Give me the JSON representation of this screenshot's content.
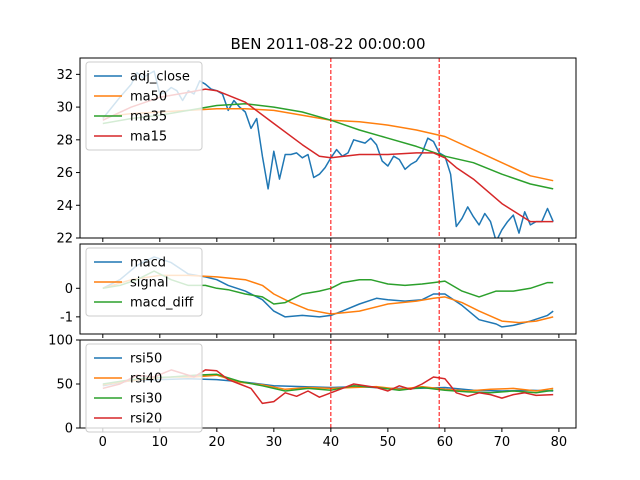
{
  "chart_data": [
    {
      "type": "line",
      "title": "BEN 2011-08-22 00:00:00",
      "ylim": [
        22,
        33
      ],
      "yticks": [
        22,
        24,
        26,
        28,
        30,
        32
      ],
      "xlim": [
        -4,
        83
      ],
      "vlines": [
        40,
        59
      ],
      "legend": "upper-left",
      "series": [
        {
          "name": "adj_close",
          "color": "#1f77b4",
          "x": [
            0,
            3,
            5,
            6,
            7,
            8,
            9,
            10,
            11,
            12,
            13,
            14,
            15,
            16,
            17,
            18,
            19,
            20,
            21,
            22,
            23,
            24,
            25,
            26,
            27,
            28,
            29,
            30,
            31,
            32,
            33,
            34,
            35,
            36,
            37,
            38,
            39,
            40,
            41,
            42,
            43,
            44,
            45,
            46,
            47,
            48,
            49,
            50,
            51,
            52,
            53,
            54,
            55,
            56,
            57,
            58,
            59,
            60,
            61,
            62,
            63,
            64,
            65,
            66,
            67,
            68,
            69,
            70,
            71,
            72,
            73,
            74,
            75,
            76,
            77,
            78,
            79
          ],
          "values": [
            29.3,
            30.6,
            31.4,
            32.1,
            31.8,
            32.0,
            32.2,
            30.8,
            30.9,
            31.2,
            31.0,
            30.4,
            31.0,
            30.8,
            31.6,
            31.4,
            31.1,
            31.0,
            30.8,
            29.8,
            30.4,
            30.0,
            29.7,
            28.7,
            29.3,
            27.0,
            25.0,
            27.3,
            25.6,
            27.1,
            27.1,
            27.2,
            26.9,
            27.1,
            25.7,
            25.9,
            26.3,
            26.9,
            27.4,
            27.0,
            27.2,
            28.0,
            27.9,
            27.8,
            28.1,
            27.7,
            26.7,
            26.4,
            27.0,
            26.8,
            26.2,
            26.5,
            26.7,
            27.2,
            28.1,
            27.9,
            27.2,
            27.0,
            25.9,
            22.7,
            23.2,
            23.9,
            23.3,
            22.8,
            23.5,
            23.0,
            21.8,
            22.5,
            23.0,
            23.4,
            22.3,
            23.6,
            22.8,
            23.0,
            23.0,
            23.8,
            23.0
          ]
        },
        {
          "name": "ma50",
          "color": "#ff7f0e",
          "x": [
            0,
            5,
            10,
            15,
            20,
            25,
            30,
            35,
            40,
            45,
            50,
            55,
            60,
            65,
            70,
            75,
            79
          ],
          "values": [
            29.4,
            29.6,
            29.7,
            29.8,
            29.9,
            29.9,
            29.8,
            29.5,
            29.2,
            29.1,
            28.9,
            28.6,
            28.2,
            27.4,
            26.6,
            25.8,
            25.5
          ]
        },
        {
          "name": "ma35",
          "color": "#2ca02c",
          "x": [
            0,
            5,
            10,
            15,
            20,
            25,
            30,
            35,
            40,
            45,
            50,
            55,
            60,
            65,
            70,
            75,
            79
          ],
          "values": [
            29.0,
            29.3,
            29.5,
            29.8,
            30.1,
            30.2,
            30.0,
            29.7,
            29.2,
            28.6,
            28.1,
            27.6,
            27.0,
            26.6,
            25.9,
            25.3,
            25.0
          ]
        },
        {
          "name": "ma15",
          "color": "#d62728",
          "x": [
            0,
            5,
            10,
            15,
            18,
            20,
            25,
            30,
            35,
            38,
            40,
            45,
            50,
            55,
            58,
            60,
            62,
            65,
            70,
            75,
            79
          ],
          "values": [
            29.2,
            30.0,
            30.6,
            30.9,
            31.1,
            31.0,
            30.3,
            29.0,
            27.7,
            27.0,
            26.9,
            27.1,
            27.1,
            27.2,
            27.2,
            26.9,
            26.3,
            25.6,
            24.1,
            23.0,
            23.0
          ]
        }
      ]
    },
    {
      "type": "line",
      "ylim": [
        -1.6,
        1.55
      ],
      "yticks": [
        -1,
        0
      ],
      "xlim": [
        -4,
        83
      ],
      "vlines": [
        40,
        59
      ],
      "legend": "upper-left",
      "series": [
        {
          "name": "macd",
          "color": "#1f77b4",
          "x": [
            0,
            3,
            6,
            9,
            12,
            15,
            18,
            20,
            22,
            25,
            28,
            30,
            32,
            35,
            38,
            40,
            42,
            45,
            48,
            50,
            53,
            56,
            58,
            60,
            63,
            66,
            69,
            70,
            72,
            75,
            78,
            79
          ],
          "values": [
            0.0,
            0.3,
            0.8,
            1.1,
            0.9,
            0.5,
            0.4,
            0.3,
            0.1,
            -0.1,
            -0.4,
            -0.8,
            -1.0,
            -0.95,
            -1.0,
            -0.95,
            -0.8,
            -0.55,
            -0.35,
            -0.4,
            -0.45,
            -0.4,
            -0.2,
            -0.2,
            -0.6,
            -1.1,
            -1.25,
            -1.35,
            -1.3,
            -1.15,
            -0.95,
            -0.8
          ]
        },
        {
          "name": "signal",
          "color": "#ff7f0e",
          "x": [
            0,
            5,
            10,
            15,
            20,
            25,
            28,
            30,
            33,
            36,
            40,
            45,
            50,
            55,
            58,
            60,
            63,
            66,
            70,
            73,
            76,
            79
          ],
          "values": [
            0.0,
            0.3,
            0.45,
            0.45,
            0.4,
            0.3,
            0.1,
            -0.2,
            -0.5,
            -0.75,
            -0.9,
            -0.8,
            -0.55,
            -0.45,
            -0.35,
            -0.3,
            -0.5,
            -0.8,
            -1.15,
            -1.2,
            -1.15,
            -1.0
          ]
        },
        {
          "name": "macd_diff",
          "color": "#2ca02c",
          "x": [
            0,
            3,
            6,
            9,
            12,
            15,
            18,
            20,
            22,
            25,
            28,
            30,
            32,
            35,
            38,
            40,
            42,
            45,
            47,
            50,
            53,
            56,
            58,
            60,
            63,
            66,
            69,
            72,
            75,
            78,
            79
          ],
          "values": [
            0.0,
            0.1,
            0.3,
            0.6,
            0.3,
            0.1,
            0.1,
            0.0,
            -0.05,
            -0.2,
            -0.3,
            -0.55,
            -0.5,
            -0.2,
            -0.1,
            0.0,
            0.2,
            0.3,
            0.3,
            0.15,
            0.1,
            0.15,
            0.2,
            0.25,
            -0.1,
            -0.3,
            -0.1,
            -0.1,
            0.0,
            0.2,
            0.2
          ]
        }
      ]
    },
    {
      "type": "line",
      "ylim": [
        0,
        100
      ],
      "yticks": [
        0,
        50,
        100
      ],
      "xlim": [
        -4,
        83
      ],
      "xticks": [
        0,
        10,
        20,
        30,
        40,
        50,
        60,
        70,
        80
      ],
      "vlines": [
        40,
        59
      ],
      "legend": "upper-left",
      "series": [
        {
          "name": "rsi50",
          "color": "#1f77b4",
          "x": [
            0,
            5,
            10,
            15,
            20,
            25,
            30,
            35,
            40,
            45,
            50,
            55,
            60,
            65,
            70,
            75,
            79
          ],
          "values": [
            48,
            54,
            55,
            56,
            55,
            52,
            48,
            47,
            46,
            47,
            45,
            45,
            46,
            43,
            42,
            43,
            42
          ]
        },
        {
          "name": "rsi40",
          "color": "#ff7f0e",
          "x": [
            0,
            4,
            8,
            12,
            16,
            20,
            24,
            28,
            32,
            36,
            40,
            44,
            48,
            52,
            56,
            60,
            64,
            68,
            72,
            76,
            79
          ],
          "values": [
            49,
            53,
            56,
            58,
            58,
            60,
            52,
            49,
            44,
            46,
            45,
            46,
            47,
            44,
            47,
            44,
            42,
            44,
            45,
            42,
            45
          ]
        },
        {
          "name": "rsi30",
          "color": "#2ca02c",
          "x": [
            0,
            4,
            8,
            12,
            16,
            20,
            24,
            28,
            32,
            36,
            40,
            44,
            48,
            52,
            56,
            60,
            64,
            68,
            72,
            76,
            79
          ],
          "values": [
            50,
            54,
            57,
            58,
            60,
            61,
            53,
            48,
            42,
            45,
            43,
            48,
            46,
            43,
            46,
            43,
            41,
            40,
            42,
            40,
            43
          ]
        },
        {
          "name": "rsi20",
          "color": "#d62728",
          "x": [
            0,
            3,
            6,
            9,
            12,
            14,
            16,
            18,
            20,
            22,
            24,
            26,
            28,
            30,
            32,
            34,
            36,
            38,
            40,
            42,
            44,
            46,
            48,
            50,
            52,
            54,
            56,
            58,
            60,
            62,
            64,
            66,
            68,
            70,
            72,
            74,
            76,
            79
          ],
          "values": [
            45,
            50,
            60,
            58,
            66,
            62,
            58,
            66,
            65,
            55,
            50,
            45,
            28,
            30,
            40,
            36,
            42,
            35,
            40,
            45,
            50,
            48,
            46,
            42,
            48,
            44,
            50,
            58,
            56,
            40,
            36,
            40,
            38,
            34,
            38,
            40,
            37,
            38
          ]
        }
      ]
    }
  ]
}
